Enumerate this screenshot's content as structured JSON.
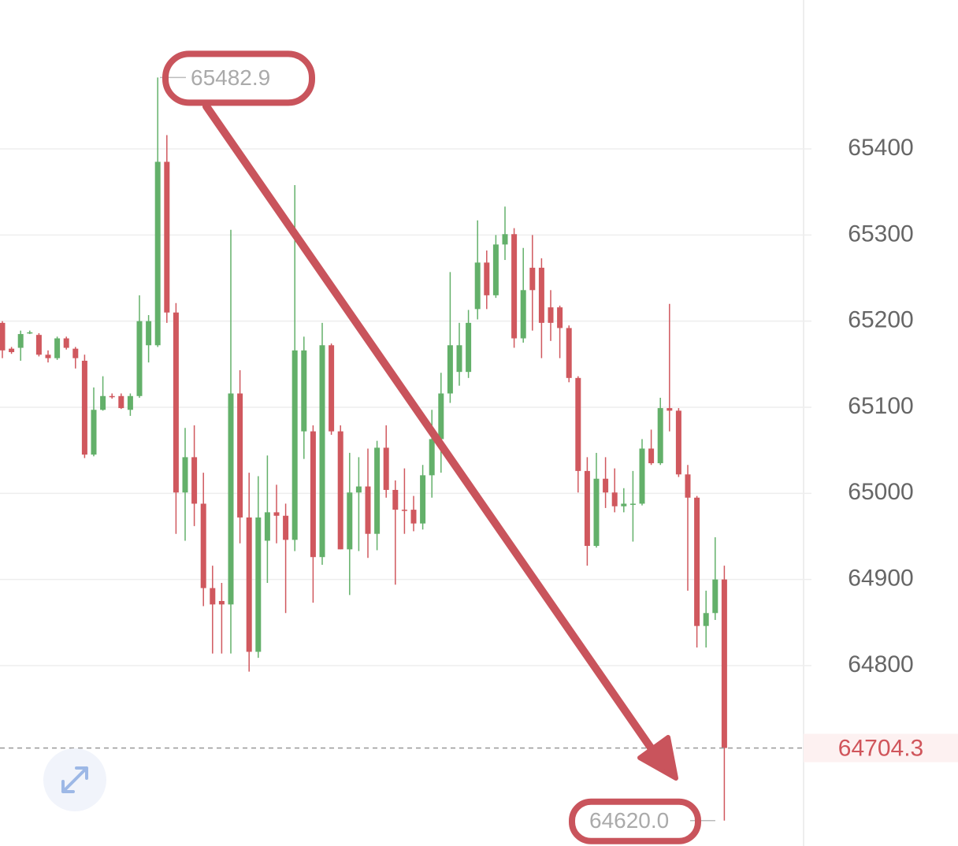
{
  "chart_data": {
    "type": "candlestick",
    "up_color": "#63b06a",
    "down_color": "#d0585e",
    "ylim": [
      64590.5,
      65572.9
    ],
    "yticks": [
      64800,
      64900,
      65000,
      65100,
      65200,
      65300,
      65400
    ],
    "grid": true,
    "open": [
      65198,
      65168,
      65169,
      65186,
      65184,
      65161,
      65157,
      65180,
      65168,
      65154,
      65045,
      65097,
      65113,
      65113,
      65097,
      65113,
      65172,
      65172,
      65385,
      65210,
      65001,
      65042,
      64988,
      64890,
      64875,
      64871,
      65116,
      64972,
      64816,
      64945,
      64978,
      64974,
      64946,
      65072,
      65072,
      64926,
      65172,
      65072,
      64935,
      65001,
      65008,
      64953,
      65053,
      65004,
      64981,
      64981,
      64965,
      65021,
      65063,
      65116,
      65141,
      65141,
      65214,
      65268,
      65230,
      65289,
      65301,
      65180,
      65262,
      65262,
      65216,
      65216,
      65192,
      65134,
      65026,
      64939,
      65017,
      65001,
      64985,
      64987,
      64988,
      65052,
      65035,
      65099,
      65096,
      65022,
      64995,
      64846,
      64861,
      64900
    ],
    "high": [
      65200,
      65170,
      65189,
      65189,
      65186,
      65166,
      65182,
      65182,
      65170,
      65161,
      65123,
      65136,
      65116,
      65116,
      65116,
      65230,
      65207,
      65482.9,
      65416,
      65221,
      65076,
      65079,
      65024,
      64916,
      64896,
      65306,
      65143,
      65024,
      65020,
      65044,
      65010,
      64988,
      65358,
      65182,
      65079,
      65198,
      65174,
      65079,
      65047,
      65042,
      65052,
      65061,
      65079,
      65015,
      65029,
      64997,
      65033,
      65097,
      65140,
      65257,
      65198,
      65213,
      65317,
      65282,
      65300,
      65333,
      65308,
      65285,
      65300,
      65273,
      65236,
      65218,
      65195,
      65136,
      65042,
      65047,
      65042,
      65029,
      65006,
      65026,
      65063,
      65074,
      65111,
      65220,
      65099,
      65033,
      64997,
      64887,
      64949,
      64916
    ],
    "low": [
      65157,
      65162,
      65154,
      65185,
      65159,
      65152,
      65155,
      65167,
      65145,
      65041,
      65043,
      65096,
      65110,
      65098,
      65090,
      65111,
      65152,
      65170,
      65198,
      64953,
      64945,
      64962,
      64869,
      64814,
      64814,
      64814,
      64942,
      64793,
      64809,
      64896,
      64942,
      64861,
      64933,
      65040,
      64873,
      64917,
      65068,
      64935,
      64882,
      64933,
      64925,
      64934,
      64995,
      64894,
      64953,
      64956,
      64958,
      64995,
      65024,
      65105,
      65125,
      65134,
      65202,
      65214,
      65227,
      65271,
      65169,
      65175,
      65189,
      65157,
      65177,
      65157,
      65129,
      65001,
      64916,
      64937,
      64983,
      64978,
      64978,
      64944,
      64986,
      65033,
      65033,
      65072,
      65019,
      64887,
      64821,
      64821,
      64853,
      64620
    ],
    "close": [
      65166,
      65164,
      65185,
      65187,
      65161,
      65157,
      65180,
      65169,
      65157,
      65045,
      65097,
      65113,
      65112,
      65099,
      65113,
      65200,
      65200,
      65385,
      65210,
      65001,
      65042,
      64988,
      64890,
      64871,
      64871,
      65116,
      64972,
      64816,
      64972,
      64978,
      64974,
      64946,
      65166,
      65166,
      64926,
      65172,
      65072,
      64935,
      65001,
      65008,
      64953,
      65053,
      65004,
      64981,
      64980,
      64965,
      65021,
      65063,
      65116,
      65172,
      65172,
      65198,
      65268,
      65230,
      65289,
      65301,
      65180,
      65236,
      65236,
      65198,
      65198,
      65192,
      65134,
      65026,
      64939,
      65017,
      65001,
      64985,
      64988,
      64988,
      65052,
      65035,
      65099,
      65096,
      65022,
      64995,
      64846,
      64861,
      64900,
      64704.3
    ],
    "high_label": 65482.9,
    "low_label": {
      "value": 64620,
      "label": "64620.0"
    },
    "last_price": 64704.3
  }
}
